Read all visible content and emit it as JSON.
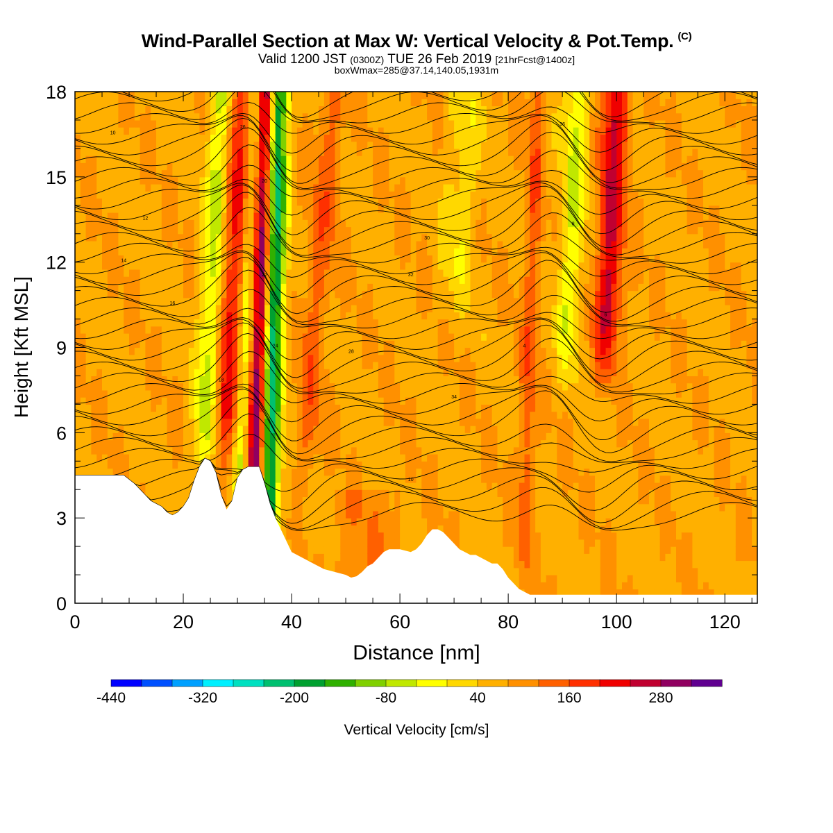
{
  "header": {
    "title": "Wind-Parallel Section at Max W: Vertical Velocity & Pot.Temp.",
    "copyright": "(C)",
    "valid_main1": "Valid 1200 JST",
    "valid_utc": "(0300Z)",
    "valid_main2": "TUE 26 Feb 2019",
    "valid_fcst": "[21hrFcst@1400z]",
    "boxw": "boxWmax=285@37.14,140.05,1931m"
  },
  "chart_data": {
    "type": "heatmap",
    "xlabel": "Distance [nm]",
    "ylabel": "Height [Kft MSL]",
    "xlim": [
      0,
      126
    ],
    "ylim": [
      0,
      18
    ],
    "x_ticks": [
      0,
      20,
      40,
      60,
      80,
      100,
      120
    ],
    "y_ticks": [
      0,
      3,
      6,
      9,
      12,
      15,
      18
    ],
    "colorbar": {
      "label": "Vertical Velocity [cm/s]",
      "tick_labels": [
        "-440",
        "-320",
        "-200",
        "-80",
        "40",
        "160",
        "280"
      ],
      "colors": [
        "#0000ff",
        "#0050ff",
        "#00a0ff",
        "#00f0ff",
        "#00e0c0",
        "#00c070",
        "#00a030",
        "#30b000",
        "#80d000",
        "#c0e800",
        "#ffff00",
        "#ffd800",
        "#ffb000",
        "#ff9000",
        "#ff6000",
        "#ff3000",
        "#f00000",
        "#c00030",
        "#900060",
        "#600090"
      ]
    },
    "terrain_profile": {
      "x": [
        0,
        9,
        11,
        12,
        13,
        14,
        15,
        16,
        17,
        18,
        19,
        20,
        21,
        22,
        23,
        24,
        25,
        26,
        27,
        28,
        29,
        30,
        31,
        32,
        33,
        34,
        35,
        36,
        37,
        38,
        39,
        40,
        42,
        44,
        46,
        48,
        50,
        51,
        52,
        53,
        54,
        55,
        56,
        57,
        58,
        60,
        62,
        63,
        64,
        65,
        66,
        67,
        68,
        69,
        70,
        71,
        72,
        73,
        74,
        75,
        76,
        77,
        78,
        79,
        80,
        81,
        82,
        83,
        84,
        85,
        86,
        87,
        88,
        90,
        100,
        110,
        120,
        126
      ],
      "y": [
        4.5,
        4.5,
        4.2,
        4.0,
        3.8,
        3.6,
        3.5,
        3.4,
        3.2,
        3.1,
        3.2,
        3.4,
        3.7,
        4.3,
        4.8,
        5.1,
        5.0,
        4.6,
        3.8,
        3.3,
        3.6,
        4.4,
        4.7,
        4.8,
        4.8,
        4.8,
        4.2,
        3.5,
        3.0,
        2.6,
        2.2,
        1.8,
        1.6,
        1.4,
        1.2,
        1.1,
        1.0,
        0.9,
        0.95,
        1.1,
        1.3,
        1.4,
        1.6,
        1.8,
        1.9,
        1.9,
        1.8,
        1.9,
        2.1,
        2.4,
        2.6,
        2.6,
        2.5,
        2.3,
        2.1,
        1.9,
        1.8,
        1.7,
        1.7,
        1.6,
        1.5,
        1.4,
        1.4,
        1.2,
        0.9,
        0.7,
        0.5,
        0.4,
        0.3,
        0.3,
        0.3,
        0.3,
        0.3,
        0.3,
        0.3,
        0.3,
        0.3,
        0.3
      ]
    },
    "contour_labels": [
      "10",
      "12",
      "14",
      "16",
      "18",
      "20",
      "22",
      "24",
      "26",
      "28",
      "30",
      "32",
      "34",
      "36",
      "8",
      "6",
      "4"
    ]
  }
}
